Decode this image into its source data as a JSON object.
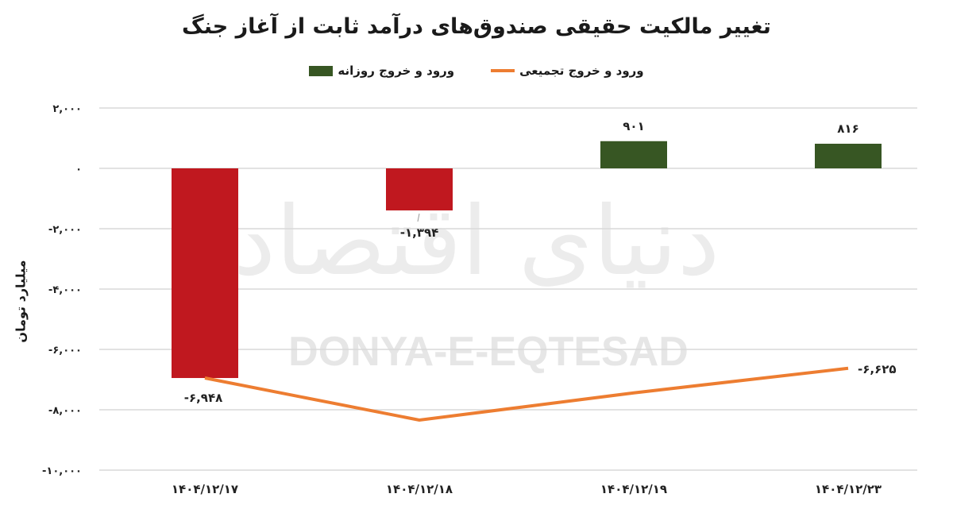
{
  "title": "تغییر مالکیت حقیقی صندوق‌های درآمد ثابت از آغاز جنگ",
  "legend": [
    {
      "label": "ورود و خروج تجمیعی",
      "type": "line",
      "color": "#ed7d31"
    },
    {
      "label": "ورود و خروج روزانه",
      "type": "bar",
      "color": "#375623"
    }
  ],
  "ylabel": "میلیارد تومان",
  "yticks": [
    "۲,۰۰۰",
    "۰",
    "-۲,۰۰۰",
    "-۴,۰۰۰",
    "-۶,۰۰۰",
    "-۸,۰۰۰",
    "-۱۰,۰۰۰"
  ],
  "watermark": {
    "fa": "دنیای اقتصاد",
    "en": "DONYA-E-EQTESAD"
  },
  "colors": {
    "positive_bar": "#375623",
    "negative_bar": "#c0181f",
    "line": "#ed7d31",
    "grid": "#d9d9d9"
  },
  "chart_data": {
    "type": "bar",
    "title": "تغییر مالکیت حقیقی صندوق‌های درآمد ثابت از آغاز جنگ",
    "xlabel": "",
    "ylabel": "میلیارد تومان",
    "ylim": [
      -10000,
      2000
    ],
    "grid": true,
    "legend_position": "top",
    "categories": [
      "۱۴۰۴/۱۲/۱۷",
      "۱۴۰۴/۱۲/۱۸",
      "۱۴۰۴/۱۲/۱۹",
      "۱۴۰۴/۱۲/۲۳"
    ],
    "series": [
      {
        "name": "ورود و خروج روزانه",
        "type": "bar",
        "values": [
          -6948,
          -1394,
          901,
          816
        ],
        "labels": [
          "-۶,۹۴۸",
          "-۱,۳۹۴",
          "۹۰۱",
          "۸۱۶"
        ]
      },
      {
        "name": "ورود و خروج تجمیعی",
        "type": "line",
        "values": [
          -6948,
          -8342,
          -7441,
          -6625
        ],
        "labels": [
          "-۶,۹۴۸",
          "",
          "",
          "-۶,۶۲۵"
        ]
      }
    ]
  }
}
